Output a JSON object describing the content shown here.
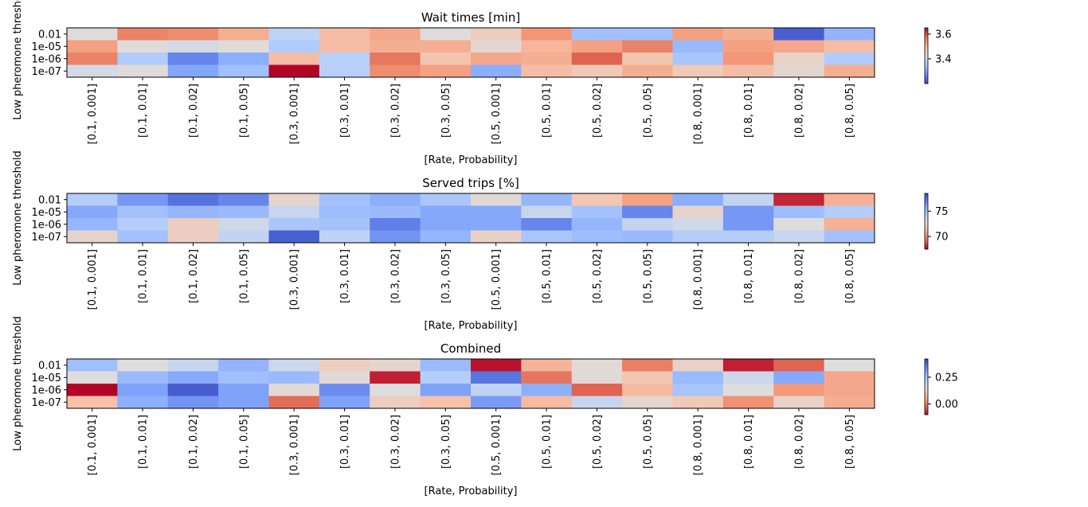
{
  "chart_data": [
    {
      "type": "heatmap",
      "title": "Wait times [min]",
      "xlabel": "[Rate, Probability]",
      "ylabel": "Low pheromone threshold",
      "x_categories": [
        "[0.1, 0.001]",
        "[0.1, 0.01]",
        "[0.1, 0.02]",
        "[0.1, 0.05]",
        "[0.3, 0.001]",
        "[0.3, 0.01]",
        "[0.3, 0.02]",
        "[0.3, 0.05]",
        "[0.5, 0.001]",
        "[0.5, 0.01]",
        "[0.5, 0.02]",
        "[0.5, 0.05]",
        "[0.8, 0.001]",
        "[0.8, 0.01]",
        "[0.8, 0.02]",
        "[0.8, 0.05]"
      ],
      "y_categories": [
        "0.01",
        "1e-05",
        "1e-06",
        "1e-07"
      ],
      "values": [
        [
          3.43,
          3.56,
          3.55,
          3.51,
          3.38,
          3.49,
          3.52,
          3.43,
          3.46,
          3.54,
          3.34,
          3.34,
          3.53,
          3.51,
          3.22,
          3.32
        ],
        [
          3.53,
          3.43,
          3.41,
          3.43,
          3.36,
          3.49,
          3.51,
          3.51,
          3.44,
          3.5,
          3.53,
          3.56,
          3.33,
          3.53,
          3.52,
          3.49
        ],
        [
          3.56,
          3.36,
          3.26,
          3.31,
          3.49,
          3.37,
          3.57,
          3.48,
          3.52,
          3.51,
          3.59,
          3.48,
          3.35,
          3.54,
          3.45,
          3.36
        ],
        [
          3.41,
          3.43,
          3.3,
          3.34,
          3.65,
          3.37,
          3.55,
          3.53,
          3.31,
          3.49,
          3.47,
          3.51,
          3.47,
          3.49,
          3.44,
          3.51
        ]
      ],
      "colorbar": {
        "min": 3.2,
        "max": 3.65,
        "ticks": [
          "3.4",
          "3.6"
        ],
        "tick_values": [
          3.4,
          3.6
        ],
        "colormap": "coolwarm",
        "reversed": false
      }
    },
    {
      "type": "heatmap",
      "title": "Served trips [%]",
      "xlabel": "[Rate, Probability]",
      "ylabel": "Low pheromone threshold",
      "x_categories": [
        "[0.1, 0.001]",
        "[0.1, 0.01]",
        "[0.1, 0.02]",
        "[0.1, 0.05]",
        "[0.3, 0.001]",
        "[0.3, 0.01]",
        "[0.3, 0.02]",
        "[0.3, 0.05]",
        "[0.5, 0.001]",
        "[0.5, 0.01]",
        "[0.5, 0.02]",
        "[0.5, 0.05]",
        "[0.8, 0.001]",
        "[0.8, 0.01]",
        "[0.8, 0.02]",
        "[0.8, 0.05]"
      ],
      "y_categories": [
        "0.01",
        "1e-05",
        "1e-06",
        "1e-07"
      ],
      "values": [
        [
          74.5,
          76.5,
          77.5,
          77.0,
          72.5,
          75.0,
          75.8,
          74.8,
          72.8,
          75.5,
          71.8,
          70.5,
          75.8,
          74.0,
          68.0,
          71.0
        ],
        [
          76.0,
          75.0,
          75.5,
          75.3,
          73.8,
          75.2,
          75.3,
          76.0,
          76.0,
          73.8,
          75.0,
          77.0,
          72.5,
          76.5,
          75.2,
          74.5
        ],
        [
          75.5,
          74.5,
          72.2,
          73.5,
          74.8,
          75.0,
          77.2,
          76.0,
          76.0,
          77.0,
          75.5,
          74.0,
          73.5,
          76.5,
          73.0,
          71.0
        ],
        [
          72.5,
          75.0,
          72.2,
          74.0,
          78.0,
          74.2,
          76.6,
          75.5,
          72.3,
          74.8,
          75.2,
          75.3,
          74.5,
          74.5,
          73.8,
          75.0
        ]
      ],
      "colorbar": {
        "min": 67.5,
        "max": 78.5,
        "ticks": [
          "75",
          "70"
        ],
        "tick_values": [
          75,
          70
        ],
        "colormap": "coolwarm",
        "reversed": true
      }
    },
    {
      "type": "heatmap",
      "title": "Combined",
      "xlabel": "[Rate, Probability]",
      "ylabel": "Low pheromone threshold",
      "x_categories": [
        "[0.1, 0.001]",
        "[0.1, 0.01]",
        "[0.1, 0.02]",
        "[0.1, 0.05]",
        "[0.3, 0.001]",
        "[0.3, 0.01]",
        "[0.3, 0.02]",
        "[0.3, 0.05]",
        "[0.5, 0.001]",
        "[0.5, 0.01]",
        "[0.5, 0.02]",
        "[0.5, 0.05]",
        "[0.8, 0.001]",
        "[0.8, 0.01]",
        "[0.8, 0.02]",
        "[0.8, 0.05]"
      ],
      "y_categories": [
        "0.01",
        "1e-05",
        "1e-06",
        "1e-07"
      ],
      "values": [
        [
          0.26,
          0.16,
          0.2,
          0.28,
          0.19,
          0.12,
          0.14,
          0.27,
          -0.09,
          0.07,
          0.15,
          0.0,
          0.13,
          -0.08,
          -0.03,
          0.16
        ],
        [
          0.16,
          0.27,
          0.3,
          0.26,
          0.27,
          0.15,
          -0.08,
          0.23,
          0.37,
          -0.01,
          0.15,
          0.1,
          0.27,
          0.19,
          0.3,
          0.05
        ],
        [
          -0.1,
          0.31,
          0.4,
          0.31,
          0.15,
          0.34,
          0.16,
          0.31,
          0.21,
          0.29,
          -0.03,
          0.08,
          0.25,
          0.16,
          0.03,
          0.05
        ],
        [
          0.09,
          0.29,
          0.33,
          0.31,
          -0.02,
          0.31,
          0.12,
          0.09,
          0.32,
          0.08,
          0.2,
          0.14,
          0.11,
          0.02,
          0.13,
          0.06
        ]
      ],
      "colorbar": {
        "min": -0.1,
        "max": 0.42,
        "ticks": [
          "0.25",
          "0.00"
        ],
        "tick_values": [
          0.25,
          0.0
        ],
        "colormap": "coolwarm",
        "reversed": true
      }
    }
  ]
}
